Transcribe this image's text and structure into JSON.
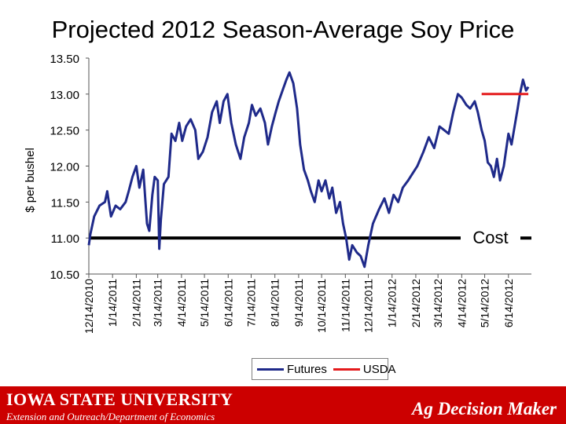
{
  "title": "Projected 2012 Season-Average Soy Price",
  "chart_data": {
    "type": "line",
    "ylabel": "$ per bushel",
    "ylim": [
      10.5,
      13.5
    ],
    "y_ticks": [
      "10.50",
      "11.00",
      "11.50",
      "12.00",
      "12.50",
      "13.00",
      "13.50"
    ],
    "x_ticks": [
      "12/14/2010",
      "1/14/2011",
      "2/14/2011",
      "3/14/2011",
      "4/14/2011",
      "5/14/2011",
      "6/14/2011",
      "7/14/2011",
      "8/14/2011",
      "9/14/2011",
      "10/14/2011",
      "11/14/2011",
      "12/14/2011",
      "1/14/2012",
      "2/14/2012",
      "3/14/2012",
      "4/14/2012",
      "5/14/2012",
      "6/14/2012"
    ],
    "x_range": [
      "12/14/2010",
      "7/14/2012"
    ],
    "series": [
      {
        "name": "Futures",
        "color": "#1f2a8a",
        "points": [
          [
            "12/14/2010",
            10.9
          ],
          [
            "12/16/2010",
            11.05
          ],
          [
            "12/21/2010",
            11.3
          ],
          [
            "12/28/2010",
            11.45
          ],
          [
            "1/4/2011",
            11.5
          ],
          [
            "1/7/2011",
            11.65
          ],
          [
            "1/12/2011",
            11.3
          ],
          [
            "1/18/2011",
            11.45
          ],
          [
            "1/24/2011",
            11.4
          ],
          [
            "1/31/2011",
            11.5
          ],
          [
            "2/4/2011",
            11.65
          ],
          [
            "2/9/2011",
            11.85
          ],
          [
            "2/14/2011",
            12.0
          ],
          [
            "2/18/2011",
            11.7
          ],
          [
            "2/23/2011",
            11.95
          ],
          [
            "2/28/2011",
            11.2
          ],
          [
            "3/3/2011",
            11.1
          ],
          [
            "3/7/2011",
            11.6
          ],
          [
            "3/10/2011",
            11.85
          ],
          [
            "3/14/2011",
            11.8
          ],
          [
            "3/16/2011",
            10.85
          ],
          [
            "3/18/2011",
            11.25
          ],
          [
            "3/22/2011",
            11.75
          ],
          [
            "3/28/2011",
            11.85
          ],
          [
            "4/1/2011",
            12.45
          ],
          [
            "4/6/2011",
            12.35
          ],
          [
            "4/11/2011",
            12.6
          ],
          [
            "4/15/2011",
            12.35
          ],
          [
            "4/20/2011",
            12.55
          ],
          [
            "4/26/2011",
            12.65
          ],
          [
            "5/2/2011",
            12.5
          ],
          [
            "5/6/2011",
            12.1
          ],
          [
            "5/12/2011",
            12.2
          ],
          [
            "5/18/2011",
            12.4
          ],
          [
            "5/24/2011",
            12.75
          ],
          [
            "5/30/2011",
            12.9
          ],
          [
            "6/3/2011",
            12.6
          ],
          [
            "6/8/2011",
            12.9
          ],
          [
            "6/13/2011",
            13.0
          ],
          [
            "6/18/2011",
            12.6
          ],
          [
            "6/24/2011",
            12.3
          ],
          [
            "6/30/2011",
            12.1
          ],
          [
            "7/5/2011",
            12.4
          ],
          [
            "7/11/2011",
            12.6
          ],
          [
            "7/15/2011",
            12.85
          ],
          [
            "7/20/2011",
            12.7
          ],
          [
            "7/26/2011",
            12.8
          ],
          [
            "8/1/2011",
            12.6
          ],
          [
            "8/5/2011",
            12.3
          ],
          [
            "8/10/2011",
            12.55
          ],
          [
            "8/15/2011",
            12.75
          ],
          [
            "8/19/2011",
            12.9
          ],
          [
            "8/24/2011",
            13.05
          ],
          [
            "8/29/2011",
            13.2
          ],
          [
            "9/2/2011",
            13.3
          ],
          [
            "9/7/2011",
            13.15
          ],
          [
            "9/12/2011",
            12.8
          ],
          [
            "9/16/2011",
            12.3
          ],
          [
            "9/21/2011",
            11.95
          ],
          [
            "9/26/2011",
            11.8
          ],
          [
            "9/30/2011",
            11.65
          ],
          [
            "10/5/2011",
            11.5
          ],
          [
            "10/10/2011",
            11.8
          ],
          [
            "10/14/2011",
            11.65
          ],
          [
            "10/19/2011",
            11.8
          ],
          [
            "10/24/2011",
            11.55
          ],
          [
            "10/28/2011",
            11.7
          ],
          [
            "11/2/2011",
            11.35
          ],
          [
            "11/7/2011",
            11.5
          ],
          [
            "11/11/2011",
            11.2
          ],
          [
            "11/15/2011",
            11.0
          ],
          [
            "11/19/2011",
            10.7
          ],
          [
            "11/23/2011",
            10.9
          ],
          [
            "11/29/2011",
            10.8
          ],
          [
            "12/4/2011",
            10.75
          ],
          [
            "12/9/2011",
            10.6
          ],
          [
            "12/14/2011",
            10.9
          ],
          [
            "12/20/2011",
            11.2
          ],
          [
            "12/28/2011",
            11.4
          ],
          [
            "1/4/2012",
            11.55
          ],
          [
            "1/10/2012",
            11.35
          ],
          [
            "1/16/2012",
            11.6
          ],
          [
            "1/22/2012",
            11.5
          ],
          [
            "1/28/2012",
            11.7
          ],
          [
            "2/4/2012",
            11.8
          ],
          [
            "2/10/2012",
            11.9
          ],
          [
            "2/16/2012",
            12.0
          ],
          [
            "2/24/2012",
            12.2
          ],
          [
            "3/2/2012",
            12.4
          ],
          [
            "3/9/2012",
            12.25
          ],
          [
            "3/16/2012",
            12.55
          ],
          [
            "3/22/2012",
            12.5
          ],
          [
            "3/28/2012",
            12.45
          ],
          [
            "4/3/2012",
            12.75
          ],
          [
            "4/9/2012",
            13.0
          ],
          [
            "4/14/2012",
            12.95
          ],
          [
            "4/20/2012",
            12.85
          ],
          [
            "4/25/2012",
            12.8
          ],
          [
            "5/1/2012",
            12.9
          ],
          [
            "5/5/2012",
            12.75
          ],
          [
            "5/10/2012",
            12.5
          ],
          [
            "5/14/2012",
            12.35
          ],
          [
            "5/18/2012",
            12.05
          ],
          [
            "5/22/2012",
            12.0
          ],
          [
            "5/26/2012",
            11.85
          ],
          [
            "5/30/2012",
            12.1
          ],
          [
            "6/3/2012",
            11.8
          ],
          [
            "6/8/2012",
            12.0
          ],
          [
            "6/14/2012",
            12.45
          ],
          [
            "6/18/2012",
            12.3
          ],
          [
            "6/22/2012",
            12.55
          ],
          [
            "6/26/2012",
            12.8
          ],
          [
            "6/29/2012",
            13.0
          ],
          [
            "7/3/2012",
            13.2
          ],
          [
            "7/7/2012",
            13.05
          ],
          [
            "7/10/2012",
            13.1
          ]
        ]
      },
      {
        "name": "USDA",
        "color": "#e41a1c",
        "points": [
          [
            "5/10/2012",
            13.0
          ],
          [
            "7/10/2012",
            13.0
          ]
        ]
      }
    ],
    "reference_lines": [
      {
        "label": "Cost",
        "value": 11.0,
        "color": "#000000"
      }
    ],
    "legend": {
      "position": "bottom",
      "entries": [
        "Futures",
        "USDA"
      ]
    },
    "grid": false
  },
  "footer": {
    "university": "IOWA STATE UNIVERSITY",
    "department": "Extension and Outreach/Department of Economics",
    "brand": "Ag Decision Maker"
  }
}
